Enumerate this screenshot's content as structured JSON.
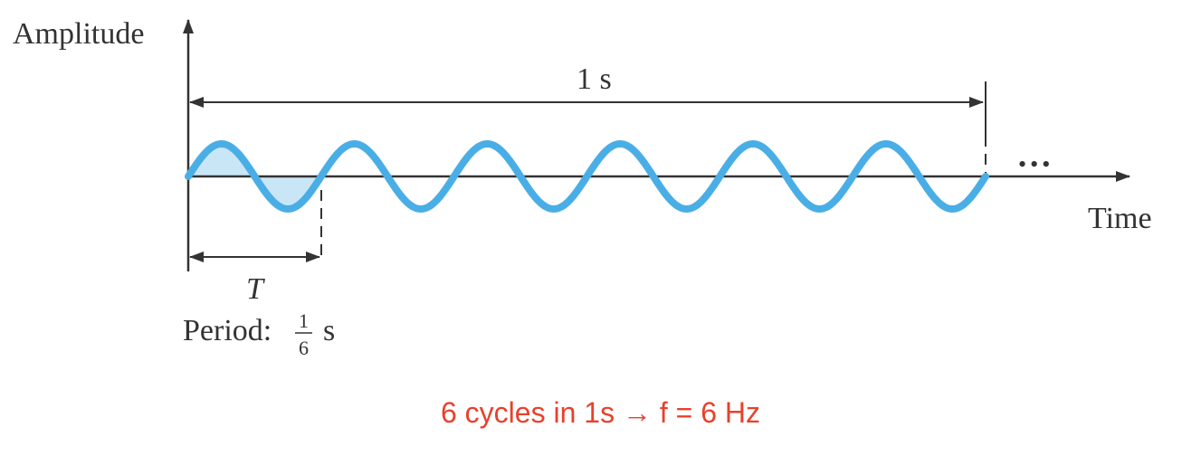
{
  "labels": {
    "amplitude": "Amplitude",
    "time": "Time",
    "duration": "1 s",
    "period_symbol": "T",
    "period_prefix": "Period:",
    "period_num": "1",
    "period_den": "6",
    "period_unit": "s",
    "ellipsis": "•••"
  },
  "caption": {
    "prefix": "6 cycles in 1s ",
    "arrow": "→",
    "suffix": " f = 6 Hz"
  },
  "signal": {
    "cycles": 6,
    "duration_s": 1,
    "frequency_hz": 6,
    "period_s": 0.1667
  },
  "colors": {
    "wave": "#4aaee6",
    "fill": "#c9e6f7",
    "axis": "#333333",
    "caption": "#e8412c"
  }
}
